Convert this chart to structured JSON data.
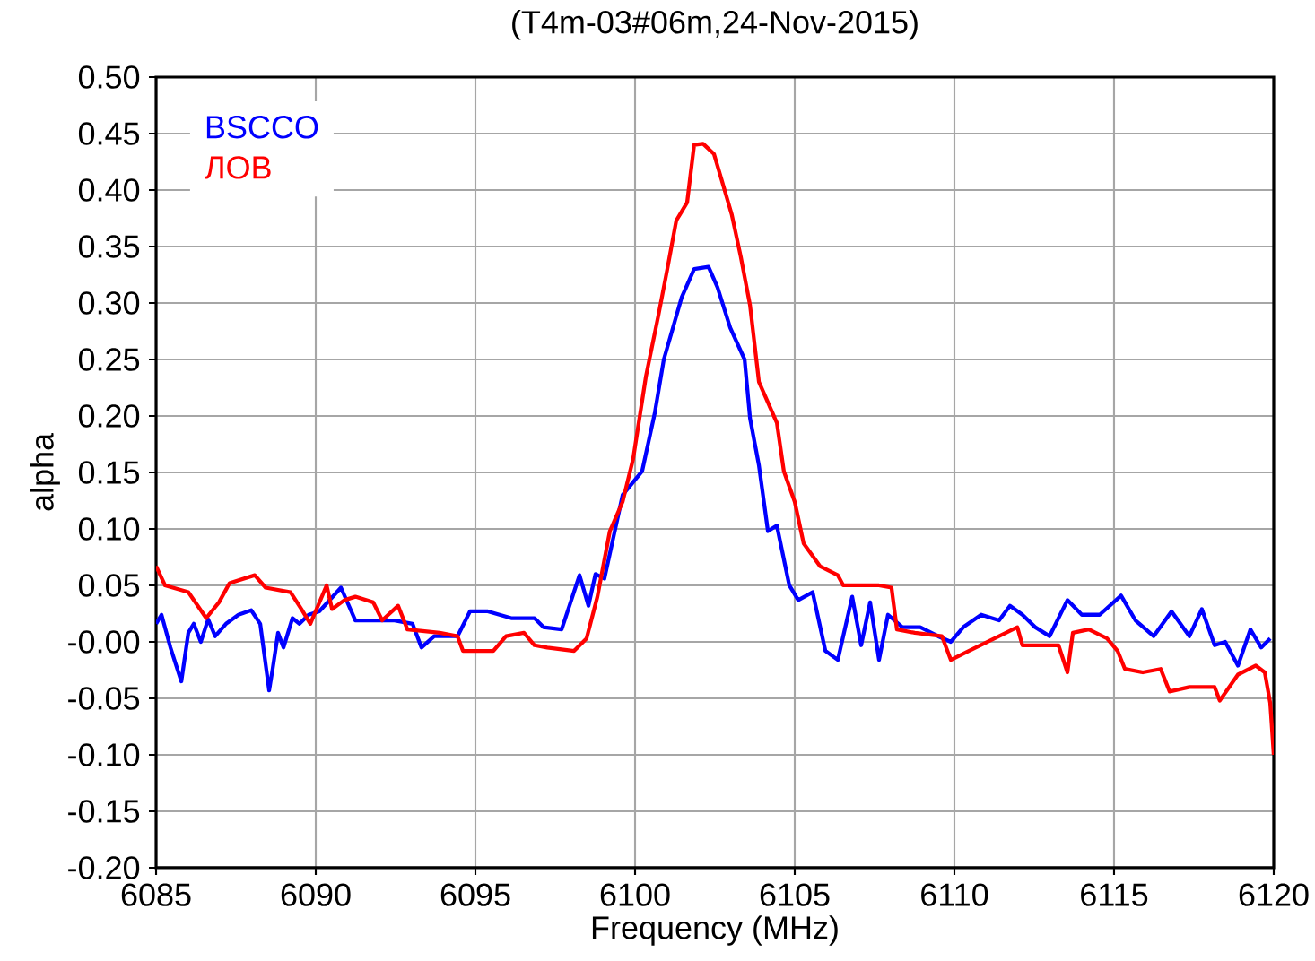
{
  "chart_data": {
    "type": "line",
    "title": "(T4m-03#06m,24-Nov-2015)",
    "xlabel": "Frequency (MHz)",
    "ylabel": "alpha",
    "xlim": [
      6085,
      6120
    ],
    "xticks": [
      6085,
      6090,
      6095,
      6100,
      6105,
      6110,
      6115,
      6120
    ],
    "ylim": [
      -0.2,
      0.5
    ],
    "yticks": [
      {
        "value": -0.2,
        "label": "-0.20"
      },
      {
        "value": -0.15,
        "label": "-0.15"
      },
      {
        "value": -0.1,
        "label": "-0.10"
      },
      {
        "value": -0.05,
        "label": "-0.05"
      },
      {
        "value": 0,
        "label": "-0.00"
      },
      {
        "value": 0.05,
        "label": "0.05"
      },
      {
        "value": 0.1,
        "label": "0.10"
      },
      {
        "value": 0.15,
        "label": "0.15"
      },
      {
        "value": 0.2,
        "label": "0.20"
      },
      {
        "value": 0.25,
        "label": "0.25"
      },
      {
        "value": 0.3,
        "label": "0.30"
      },
      {
        "value": 0.35,
        "label": "0.35"
      },
      {
        "value": 0.4,
        "label": "0.40"
      },
      {
        "value": 0.45,
        "label": "0.45"
      },
      {
        "value": 0.5,
        "label": "0.50"
      }
    ],
    "grid": true,
    "legend": "top left",
    "series": [
      {
        "name": "BSCCO",
        "color": "#0000ff",
        "x": [
          6085.0,
          6085.17,
          6085.45,
          6085.79,
          6086.01,
          6086.18,
          6086.4,
          6086.63,
          6086.85,
          6087.19,
          6087.58,
          6087.98,
          6088.26,
          6088.54,
          6088.65,
          6088.82,
          6088.99,
          6089.27,
          6089.49,
          6089.78,
          6090.11,
          6090.79,
          6091.24,
          6091.91,
          6092.47,
          6093.03,
          6093.31,
          6093.71,
          6094.44,
          6094.83,
          6095.39,
          6096.12,
          6096.85,
          6097.13,
          6097.7,
          6098.26,
          6098.54,
          6098.76,
          6099.04,
          6099.61,
          6100.22,
          6100.62,
          6100.9,
          6101.46,
          6101.85,
          6102.3,
          6102.58,
          6102.98,
          6103.43,
          6103.6,
          6103.88,
          6104.16,
          6104.44,
          6104.83,
          6105.11,
          6105.56,
          6105.96,
          6106.35,
          6106.8,
          6107.08,
          6107.36,
          6107.64,
          6107.92,
          6108.37,
          6108.93,
          6109.49,
          6109.89,
          6110.28,
          6110.84,
          6111.4,
          6111.74,
          6112.13,
          6112.53,
          6112.98,
          6113.54,
          6113.99,
          6114.55,
          6115.22,
          6115.67,
          6116.24,
          6116.8,
          6117.36,
          6117.75,
          6118.15,
          6118.48,
          6118.88,
          6119.27,
          6119.61,
          6119.89
        ],
        "values": [
          0.016,
          0.024,
          -0.005,
          -0.035,
          0.008,
          0.016,
          0.0,
          0.02,
          0.005,
          0.016,
          0.024,
          0.028,
          0.016,
          -0.043,
          -0.024,
          0.008,
          -0.005,
          0.021,
          0.016,
          0.024,
          0.027,
          0.048,
          0.019,
          0.019,
          0.019,
          0.016,
          -0.005,
          0.005,
          0.005,
          0.027,
          0.027,
          0.021,
          0.021,
          0.013,
          0.011,
          0.059,
          0.032,
          0.06,
          0.056,
          0.13,
          0.151,
          0.203,
          0.25,
          0.305,
          0.33,
          0.332,
          0.314,
          0.278,
          0.25,
          0.198,
          0.156,
          0.098,
          0.103,
          0.05,
          0.037,
          0.044,
          -0.008,
          -0.016,
          0.04,
          -0.003,
          0.035,
          -0.016,
          0.024,
          0.013,
          0.013,
          0.005,
          0.0,
          0.013,
          0.024,
          0.019,
          0.032,
          0.024,
          0.013,
          0.005,
          0.037,
          0.024,
          0.024,
          0.041,
          0.019,
          0.005,
          0.027,
          0.005,
          0.029,
          -0.003,
          0.0,
          -0.021,
          0.011,
          -0.005,
          0.003
        ]
      },
      {
        "name": "ЛОВ",
        "color": "#ff0000",
        "x": [
          6085.0,
          6085.28,
          6086.01,
          6086.57,
          6086.97,
          6087.3,
          6088.09,
          6088.43,
          6089.21,
          6089.55,
          6089.83,
          6090.34,
          6090.51,
          6090.9,
          6091.24,
          6091.8,
          6092.08,
          6092.58,
          6092.87,
          6093.88,
          6094.44,
          6094.61,
          6095.56,
          6095.96,
          6096.52,
          6096.85,
          6097.25,
          6098.09,
          6098.48,
          6098.82,
          6099.21,
          6099.61,
          6099.94,
          6100.34,
          6100.73,
          6101.01,
          6101.29,
          6101.63,
          6101.85,
          6102.13,
          6102.47,
          6102.7,
          6103.03,
          6103.31,
          6103.6,
          6103.88,
          6104.44,
          6104.66,
          6105.0,
          6105.28,
          6105.79,
          6106.35,
          6106.52,
          6107.64,
          6108.03,
          6108.2,
          6108.76,
          6109.61,
          6109.89,
          6110.45,
          6111.4,
          6111.97,
          6112.13,
          6112.87,
          6113.26,
          6113.54,
          6113.71,
          6114.21,
          6114.78,
          6115.11,
          6115.34,
          6115.9,
          6116.46,
          6116.74,
          6117.36,
          6118.15,
          6118.31,
          6118.88,
          6119.44,
          6119.72,
          6119.89,
          6120.0
        ],
        "values": [
          0.067,
          0.05,
          0.044,
          0.021,
          0.035,
          0.052,
          0.059,
          0.048,
          0.044,
          0.029,
          0.016,
          0.05,
          0.029,
          0.037,
          0.04,
          0.035,
          0.019,
          0.032,
          0.011,
          0.008,
          0.005,
          -0.008,
          -0.008,
          0.005,
          0.008,
          -0.003,
          -0.005,
          -0.008,
          0.003,
          0.04,
          0.098,
          0.124,
          0.162,
          0.235,
          0.289,
          0.33,
          0.373,
          0.389,
          0.44,
          0.441,
          0.432,
          0.41,
          0.378,
          0.341,
          0.298,
          0.23,
          0.194,
          0.151,
          0.124,
          0.087,
          0.067,
          0.059,
          0.05,
          0.05,
          0.048,
          0.011,
          0.008,
          0.005,
          -0.016,
          -0.008,
          0.005,
          0.013,
          -0.003,
          -0.003,
          -0.003,
          -0.027,
          0.008,
          0.011,
          0.003,
          -0.008,
          -0.024,
          -0.027,
          -0.024,
          -0.044,
          -0.04,
          -0.04,
          -0.052,
          -0.029,
          -0.021,
          -0.027,
          -0.054,
          -0.1
        ]
      }
    ]
  }
}
